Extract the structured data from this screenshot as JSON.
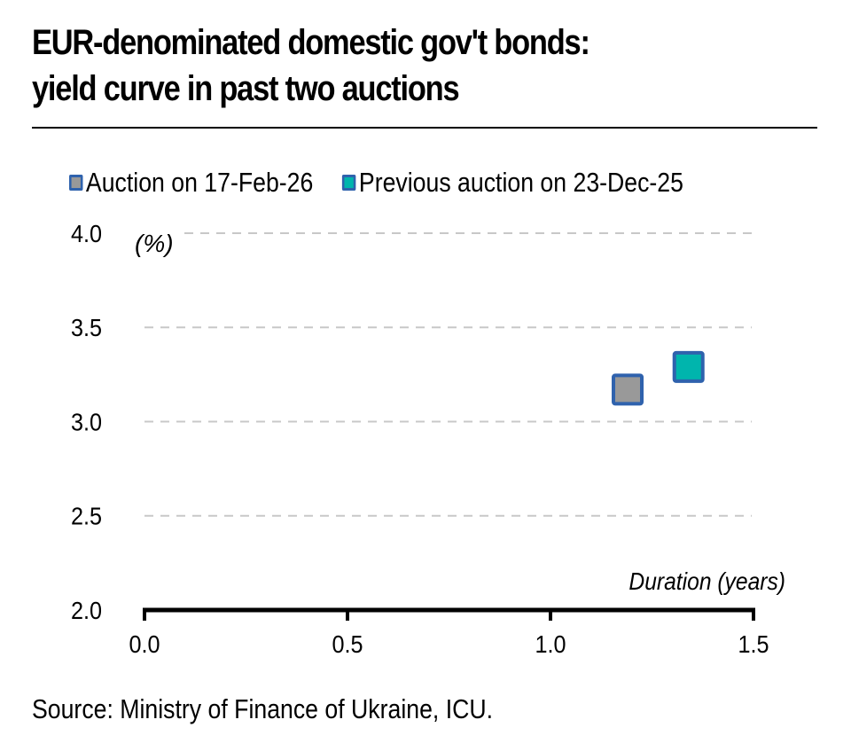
{
  "chart_data": {
    "type": "scatter",
    "title": "EUR-denominated domestic gov't bonds: yield curve in past two auctions",
    "title_lines": [
      "EUR-denominated domestic gov't bonds:",
      "yield curve in past two auctions"
    ],
    "xlabel": "Duration (years)",
    "ylabel": "(%)",
    "xlim": [
      0.0,
      1.5
    ],
    "ylim": [
      2.0,
      4.0
    ],
    "x_ticks": [
      0.0,
      0.5,
      1.0,
      1.5
    ],
    "x_tick_labels": [
      "0.0",
      "0.5",
      "1.0",
      "1.5"
    ],
    "y_ticks": [
      2.0,
      2.5,
      3.0,
      3.5,
      4.0
    ],
    "y_tick_labels": [
      "2.0",
      "2.5",
      "3.0",
      "3.5",
      "4.0"
    ],
    "grid": "horizontal dashed",
    "legend_position": "top-left",
    "series": [
      {
        "name": "Auction on 17-Feb-26",
        "color": "#999999",
        "edge_color": "#2f62ad",
        "marker": "square",
        "points": [
          {
            "x": 1.19,
            "y": 3.17
          }
        ]
      },
      {
        "name": "Previous auction on 23-Dec-25",
        "color": "#00b5ad",
        "edge_color": "#2f62ad",
        "marker": "square",
        "points": [
          {
            "x": 1.34,
            "y": 3.29
          }
        ]
      }
    ],
    "source": "Source: Ministry of Finance of Ukraine, ICU."
  }
}
